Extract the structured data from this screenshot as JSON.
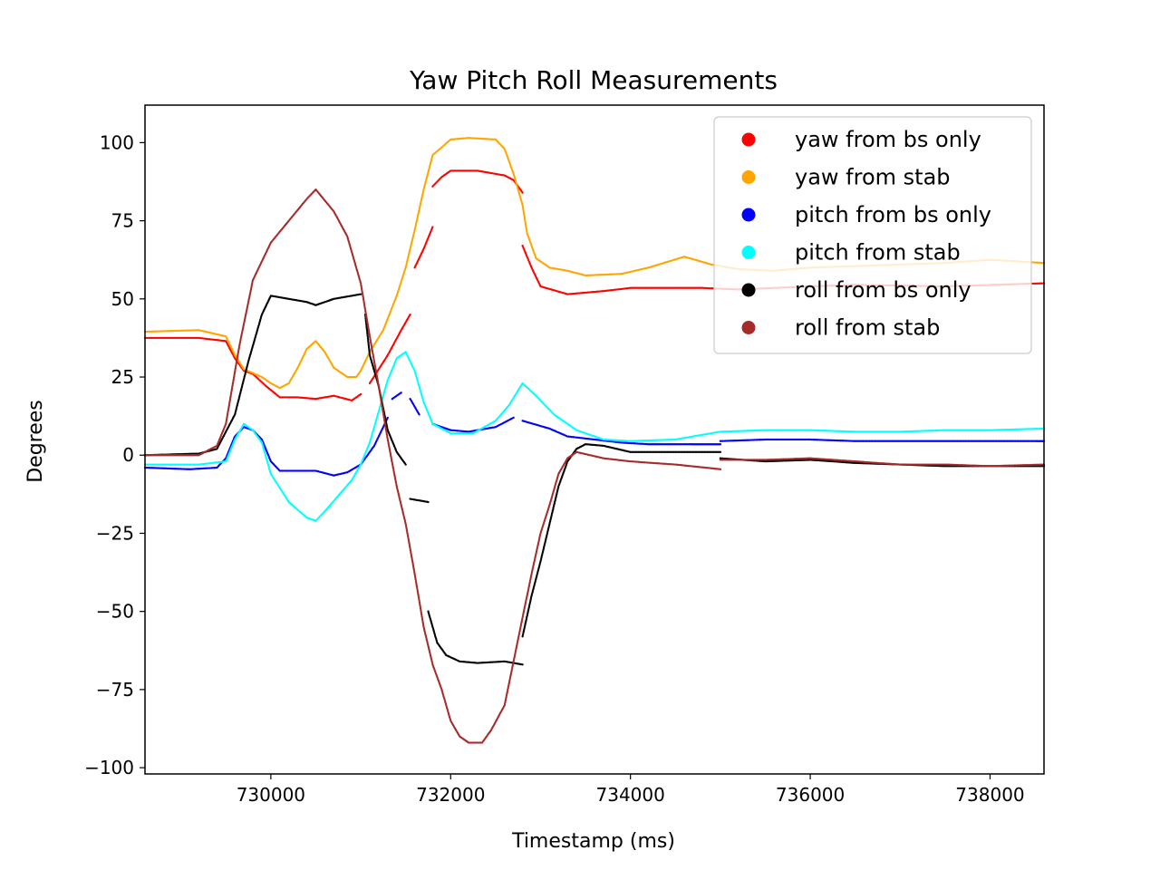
{
  "chart_data": {
    "type": "scatter",
    "title": "Yaw Pitch Roll Measurements",
    "xlabel": "Timestamp (ms)",
    "ylabel": "Degrees",
    "xlim": [
      728600,
      738600
    ],
    "ylim": [
      -102,
      112
    ],
    "x_ticks": [
      730000,
      732000,
      734000,
      736000,
      738000
    ],
    "y_ticks": [
      -100,
      -75,
      -50,
      -25,
      0,
      25,
      50,
      75,
      100
    ],
    "x_tick_labels": [
      "730000",
      "732000",
      "734000",
      "736000",
      "738000"
    ],
    "y_tick_labels": [
      "−100",
      "−75",
      "−50",
      "−25",
      "0",
      "25",
      "50",
      "75",
      "100"
    ],
    "grid": false,
    "legend_position": "upper-right",
    "series": [
      {
        "name": "yaw from bs only",
        "color": "#ff0000",
        "segments": [
          [
            [
              728600,
              37.5
            ],
            [
              729200,
              37.5
            ],
            [
              729500,
              36.5
            ],
            [
              729600,
              31
            ],
            [
              729700,
              27
            ],
            [
              729800,
              26
            ],
            [
              729950,
              22
            ],
            [
              730100,
              18.5
            ],
            [
              730300,
              18.5
            ],
            [
              730500,
              18
            ],
            [
              730700,
              19
            ],
            [
              730900,
              17.5
            ],
            [
              731000,
              19.5
            ]
          ],
          [
            [
              731100,
              23
            ],
            [
              731300,
              32
            ],
            [
              731450,
              40
            ],
            [
              731550,
              45
            ]
          ],
          [
            [
              731600,
              60
            ],
            [
              731700,
              66
            ],
            [
              731800,
              73
            ]
          ],
          [
            [
              731800,
              86
            ],
            [
              731900,
              89
            ],
            [
              732000,
              91
            ],
            [
              732300,
              91
            ],
            [
              732600,
              89.5
            ],
            [
              732700,
              88
            ],
            [
              732800,
              84
            ]
          ],
          [
            [
              732800,
              67
            ],
            [
              732900,
              60
            ],
            [
              733000,
              54
            ],
            [
              733300,
              51.5
            ],
            [
              733700,
              52.5
            ],
            [
              734000,
              53.5
            ],
            [
              734800,
              53.5
            ],
            [
              735200,
              53
            ],
            [
              736000,
              54
            ],
            [
              736500,
              54.5
            ],
            [
              737500,
              54
            ],
            [
              738600,
              55
            ]
          ]
        ]
      },
      {
        "name": "yaw from stab",
        "color": "#ffa500",
        "segments": [
          [
            [
              728600,
              39.5
            ],
            [
              729200,
              40
            ],
            [
              729500,
              38
            ],
            [
              729600,
              32
            ],
            [
              729700,
              27.5
            ],
            [
              729900,
              25
            ],
            [
              730000,
              23
            ],
            [
              730100,
              21.5
            ],
            [
              730200,
              23
            ],
            [
              730300,
              28
            ],
            [
              730400,
              34
            ],
            [
              730500,
              36.5
            ],
            [
              730600,
              33
            ],
            [
              730700,
              28
            ],
            [
              730850,
              25
            ],
            [
              730950,
              25
            ],
            [
              731000,
              27
            ],
            [
              731100,
              33
            ],
            [
              731250,
              40
            ],
            [
              731400,
              51
            ],
            [
              731500,
              60
            ],
            [
              731600,
              72
            ],
            [
              731700,
              85
            ],
            [
              731800,
              96
            ],
            [
              732000,
              101
            ],
            [
              732200,
              101.5
            ],
            [
              732500,
              101
            ],
            [
              732600,
              98
            ],
            [
              732700,
              90
            ],
            [
              732800,
              80
            ],
            [
              732850,
              71
            ],
            [
              732950,
              63
            ],
            [
              733100,
              60
            ],
            [
              733300,
              59
            ],
            [
              733500,
              57.5
            ],
            [
              733900,
              58
            ],
            [
              734200,
              60
            ],
            [
              734600,
              63.5
            ],
            [
              734900,
              61
            ],
            [
              735200,
              59.5
            ],
            [
              735600,
              59
            ],
            [
              736000,
              60
            ],
            [
              736500,
              60.5
            ],
            [
              737000,
              61
            ],
            [
              737500,
              61.5
            ],
            [
              738000,
              62.5
            ],
            [
              738600,
              61.5
            ]
          ]
        ]
      },
      {
        "name": "pitch from bs only",
        "color": "#0000ff",
        "segments": [
          [
            [
              728600,
              -4
            ],
            [
              729100,
              -4.5
            ],
            [
              729400,
              -4
            ],
            [
              729500,
              -1
            ],
            [
              729600,
              6
            ],
            [
              729700,
              9
            ],
            [
              729800,
              8
            ],
            [
              729900,
              5
            ],
            [
              730000,
              -2
            ],
            [
              730100,
              -5
            ],
            [
              730300,
              -5
            ],
            [
              730500,
              -5
            ],
            [
              730700,
              -6.5
            ],
            [
              730850,
              -5.5
            ],
            [
              731000,
              -3
            ],
            [
              731150,
              3
            ],
            [
              731300,
              12
            ]
          ],
          [
            [
              731350,
              18
            ],
            [
              731450,
              20
            ]
          ],
          [
            [
              731550,
              18
            ],
            [
              731650,
              13
            ]
          ],
          [
            [
              731800,
              10
            ],
            [
              732000,
              8
            ],
            [
              732200,
              7.5
            ],
            [
              732500,
              9
            ],
            [
              732700,
              12
            ]
          ],
          [
            [
              732800,
              11
            ],
            [
              733100,
              8.5
            ],
            [
              733300,
              6
            ],
            [
              733600,
              5
            ],
            [
              733900,
              4
            ],
            [
              734200,
              3.5
            ],
            [
              735000,
              3.5
            ]
          ],
          [
            [
              735000,
              4.5
            ],
            [
              735500,
              5
            ],
            [
              736000,
              5
            ],
            [
              736500,
              4.5
            ],
            [
              737000,
              4.5
            ],
            [
              737500,
              4.5
            ],
            [
              738600,
              4.5
            ]
          ]
        ]
      },
      {
        "name": "pitch from stab",
        "color": "#00ffff",
        "segments": [
          [
            [
              728600,
              -3
            ],
            [
              729200,
              -3
            ],
            [
              729500,
              -2
            ],
            [
              729600,
              5
            ],
            [
              729700,
              10
            ],
            [
              729800,
              8
            ],
            [
              729900,
              4
            ],
            [
              730000,
              -6
            ],
            [
              730200,
              -15
            ],
            [
              730400,
              -20
            ],
            [
              730500,
              -21
            ],
            [
              730600,
              -18
            ],
            [
              730750,
              -13
            ],
            [
              730900,
              -8
            ],
            [
              731000,
              -3
            ],
            [
              731100,
              4
            ],
            [
              731200,
              14
            ],
            [
              731300,
              24
            ],
            [
              731400,
              31
            ],
            [
              731500,
              33
            ],
            [
              731600,
              27
            ],
            [
              731700,
              17
            ],
            [
              731800,
              10
            ],
            [
              732000,
              7
            ],
            [
              732250,
              7
            ],
            [
              732500,
              11
            ],
            [
              732650,
              16
            ],
            [
              732800,
              23
            ],
            [
              732950,
              19
            ],
            [
              733150,
              13
            ],
            [
              733400,
              8
            ],
            [
              733700,
              5
            ],
            [
              734000,
              4.5
            ],
            [
              734500,
              5
            ],
            [
              735000,
              7.5
            ],
            [
              735500,
              8
            ],
            [
              736000,
              8
            ],
            [
              736500,
              7.5
            ],
            [
              737000,
              7.5
            ],
            [
              737500,
              8
            ],
            [
              738000,
              8
            ],
            [
              738600,
              8.5
            ]
          ]
        ]
      },
      {
        "name": "roll from bs only",
        "color": "#000000",
        "segments": [
          [
            [
              728600,
              0
            ],
            [
              729200,
              0.5
            ],
            [
              729400,
              2
            ],
            [
              729600,
              13
            ],
            [
              729750,
              30
            ],
            [
              729900,
              45
            ],
            [
              730000,
              51
            ],
            [
              730200,
              50
            ],
            [
              730400,
              49
            ],
            [
              730500,
              48
            ],
            [
              730700,
              50
            ],
            [
              730900,
              51
            ],
            [
              731000,
              51.5
            ]
          ],
          [
            [
              731050,
              45
            ],
            [
              731100,
              32
            ],
            [
              731200,
              22
            ],
            [
              731300,
              8
            ],
            [
              731400,
              1
            ],
            [
              731500,
              -3
            ]
          ],
          [
            [
              731550,
              -14
            ],
            [
              731750,
              -15
            ]
          ],
          [
            [
              731750,
              -50
            ],
            [
              731850,
              -60
            ],
            [
              731950,
              -64
            ],
            [
              732100,
              -66
            ],
            [
              732300,
              -66.5
            ],
            [
              732600,
              -66
            ],
            [
              732800,
              -67
            ]
          ],
          [
            [
              732800,
              -58
            ],
            [
              732900,
              -45
            ],
            [
              733000,
              -34
            ],
            [
              733100,
              -22
            ],
            [
              733200,
              -10
            ],
            [
              733300,
              -2
            ],
            [
              733400,
              2
            ],
            [
              733500,
              3.5
            ],
            [
              733700,
              3
            ],
            [
              734000,
              1
            ],
            [
              734500,
              1
            ],
            [
              735000,
              1
            ]
          ],
          [
            [
              735000,
              -1
            ],
            [
              735500,
              -2
            ],
            [
              736000,
              -1.5
            ],
            [
              736500,
              -2.5
            ],
            [
              737000,
              -3
            ],
            [
              737500,
              -3.5
            ],
            [
              738000,
              -3.5
            ],
            [
              738600,
              -3.5
            ]
          ]
        ]
      },
      {
        "name": "roll from stab",
        "color": "#a52a2a",
        "segments": [
          [
            [
              728600,
              0
            ],
            [
              729200,
              0
            ],
            [
              729400,
              3
            ],
            [
              729500,
              10
            ],
            [
              729650,
              35
            ],
            [
              729800,
              56
            ],
            [
              730000,
              68
            ],
            [
              730200,
              75
            ],
            [
              730400,
              82
            ],
            [
              730500,
              85
            ],
            [
              730700,
              78
            ],
            [
              730850,
              70
            ],
            [
              731000,
              55
            ],
            [
              731100,
              38
            ],
            [
              731200,
              22
            ],
            [
              731300,
              5
            ],
            [
              731400,
              -10
            ],
            [
              731500,
              -22
            ],
            [
              731600,
              -38
            ],
            [
              731700,
              -55
            ],
            [
              731800,
              -67
            ],
            [
              731900,
              -75
            ],
            [
              732000,
              -85
            ],
            [
              732100,
              -90
            ],
            [
              732200,
              -92
            ],
            [
              732350,
              -92
            ],
            [
              732450,
              -88
            ],
            [
              732600,
              -80
            ],
            [
              732700,
              -66
            ],
            [
              732800,
              -52
            ],
            [
              732900,
              -38
            ],
            [
              733000,
              -25
            ],
            [
              733100,
              -16
            ],
            [
              733200,
              -6
            ],
            [
              733300,
              -1
            ],
            [
              733400,
              1
            ],
            [
              733700,
              -1
            ],
            [
              734000,
              -2
            ],
            [
              734500,
              -3
            ],
            [
              735000,
              -4.5
            ]
          ],
          [
            [
              735000,
              -1.5
            ],
            [
              735500,
              -1.5
            ],
            [
              736000,
              -1
            ],
            [
              736500,
              -2
            ],
            [
              737000,
              -3
            ],
            [
              737500,
              -3
            ],
            [
              738000,
              -3.5
            ],
            [
              738600,
              -3
            ]
          ]
        ]
      }
    ]
  }
}
